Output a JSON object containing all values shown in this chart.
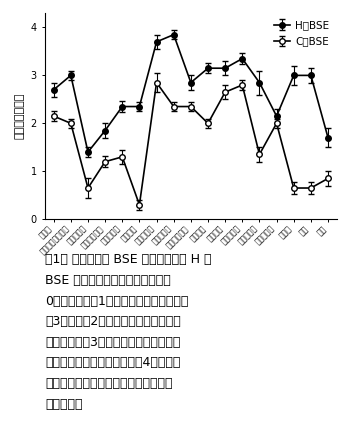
{
  "categories": [
    "延髄核",
    "三叉神経脊髄路核",
    "舌下神経核",
    "前庭神経核群",
    "蝳牛神経核",
    "小脳皮部",
    "中心灰白質",
    "中脳上丘核",
    "内側膝状体核",
    "視床下部",
    "小脳側核",
    "視床内側核",
    "前頭葉皮質",
    "屠外側坐核",
    "渡り核",
    "被殻",
    "前頭"
  ],
  "H_values": [
    2.7,
    3.0,
    1.4,
    1.85,
    2.35,
    2.35,
    3.7,
    3.85,
    2.85,
    3.15,
    3.15,
    3.35,
    2.85,
    2.15,
    3.0,
    3.0,
    1.7
  ],
  "C_values": [
    2.15,
    2.0,
    0.65,
    1.2,
    1.3,
    0.3,
    2.85,
    2.35,
    2.35,
    2.0,
    2.65,
    2.8,
    1.35,
    2.0,
    0.65,
    0.65,
    0.85
  ],
  "H_errors": [
    0.15,
    0.1,
    0.1,
    0.15,
    0.12,
    0.1,
    0.15,
    0.1,
    0.15,
    0.1,
    0.15,
    0.12,
    0.25,
    0.15,
    0.2,
    0.15,
    0.2
  ],
  "C_errors": [
    0.1,
    0.1,
    0.2,
    0.12,
    0.15,
    0.1,
    0.2,
    0.1,
    0.1,
    0.1,
    0.15,
    0.1,
    0.15,
    0.1,
    0.12,
    0.12,
    0.15
  ],
  "ylabel": "空胞変性の程度",
  "ylim": [
    0,
    4.3
  ],
  "yticks": [
    0,
    1,
    2,
    3,
    4
  ],
  "H_label": "H型BSE",
  "C_label": "C型BSE",
  "caption_line1": "図1． 脳での定型 BSE 脳内接種牛と H 型",
  "caption_line2": "BSE 脳内接種牛の空胞変性の比較",
  "caption_line3": "0：空胞なし、1：低倍の視野下で空胞数",
  "caption_line4": "が3個以下、2：低倍の視野下で数個の",
  "caption_line5": "空胞が散在、3：低倍の視野下で多数の",
  "caption_line6": "視野下で多数の空胞が散在、4：低倍の",
  "caption_line7": "視野下で無数の空胞と空胞同士の融合",
  "caption_line8": "も見られる",
  "legend_fontsize": 7.5,
  "tick_fontsize": 5.5,
  "ylabel_fontsize": 8,
  "caption_fontsize": 9
}
